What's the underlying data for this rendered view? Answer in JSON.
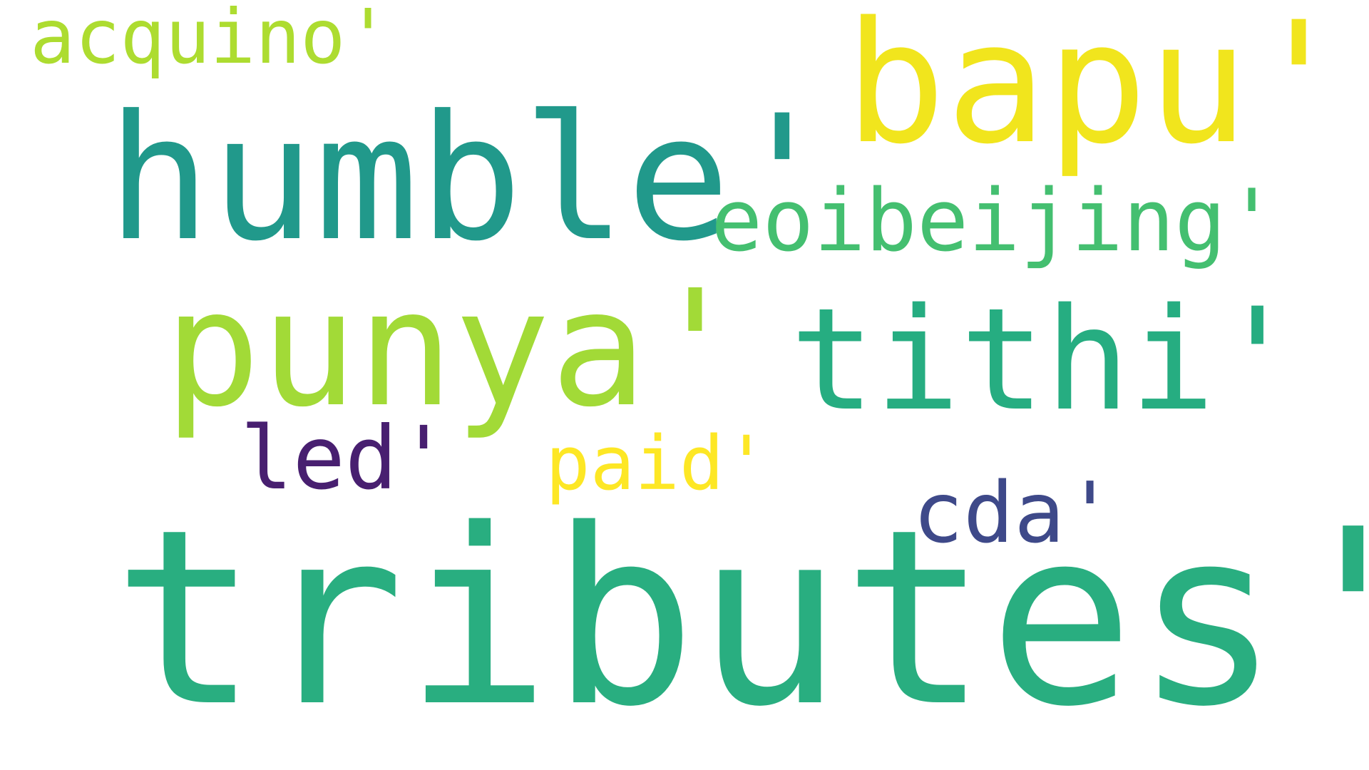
{
  "words": [
    {
      "id": "tributes",
      "text": "tributes'",
      "color": "#29ae80"
    },
    {
      "id": "humble",
      "text": "humble'",
      "color": "#21998b"
    },
    {
      "id": "bapu",
      "text": "bapu'",
      "color": "#f1e51d"
    },
    {
      "id": "punya",
      "text": "punya'",
      "color": "#a2da37"
    },
    {
      "id": "tithi",
      "text": "tithi'",
      "color": "#26ad81"
    },
    {
      "id": "eoibeijing",
      "text": "eoibeijing'",
      "color": "#44bf70"
    },
    {
      "id": "acquino",
      "text": "acquino'",
      "color": "#addc30"
    },
    {
      "id": "led",
      "text": "led'",
      "color": "#481f70"
    },
    {
      "id": "cda",
      "text": "cda'",
      "color": "#3e4989"
    },
    {
      "id": "paid",
      "text": "paid'",
      "color": "#fde725"
    }
  ]
}
